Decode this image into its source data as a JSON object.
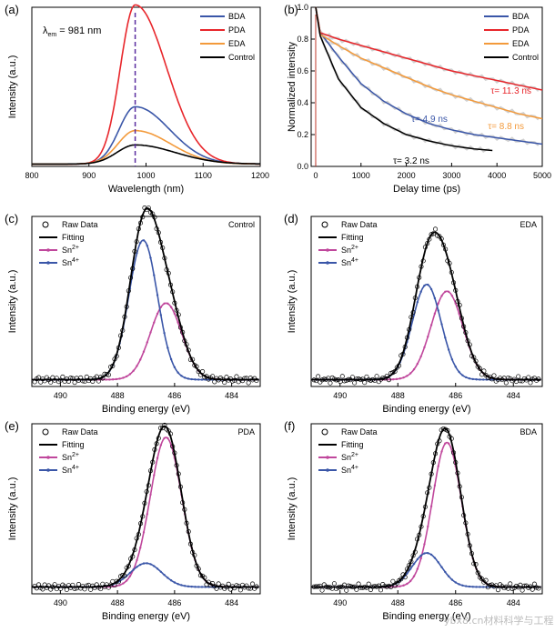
{
  "colors": {
    "BDA": "#3a56a8",
    "PDA": "#e8262b",
    "EDA": "#f39a3b",
    "Control": "#000000",
    "sn2": "#c0479c",
    "sn4": "#3a56a8",
    "fit": "#000000",
    "vline": "#5a2ca0",
    "raw": "#000000",
    "gray": "#a9a9a9"
  },
  "watermark": "ybx8.cn材料科学与工程",
  "chart_data": [
    {
      "panel_label": "(a)",
      "type": "line",
      "title": "",
      "xlabel": "Wavelength (nm)",
      "ylabel": "Intensity (a.u.)",
      "xlim": [
        800,
        1200
      ],
      "ylim": [
        0,
        1.0
      ],
      "xticks": [
        800,
        900,
        1000,
        1100,
        1200
      ],
      "annotation": "λem = 981 nm",
      "vline_x": 981,
      "legend": [
        "BDA",
        "PDA",
        "EDA",
        "Control"
      ],
      "legend_position": "top-right",
      "series": [
        {
          "name": "BDA",
          "peak": 0.36,
          "baseline": 0.015,
          "sigma_left": 28,
          "sigma_right": 60
        },
        {
          "name": "PDA",
          "peak": 1.0,
          "baseline": 0.015,
          "sigma_left": 26,
          "sigma_right": 55
        },
        {
          "name": "EDA",
          "peak": 0.21,
          "baseline": 0.015,
          "sigma_left": 30,
          "sigma_right": 62
        },
        {
          "name": "Control",
          "peak": 0.12,
          "baseline": 0.015,
          "sigma_left": 32,
          "sigma_right": 70
        }
      ]
    },
    {
      "panel_label": "(b)",
      "type": "line",
      "xlabel": "Delay time (ps)",
      "ylabel": "Normalized intensity",
      "xlim": [
        -100,
        5000
      ],
      "ylim": [
        0,
        1.0
      ],
      "xticks": [
        0,
        1000,
        2000,
        3000,
        4000,
        5000
      ],
      "yticks": [
        0.0,
        0.2,
        0.4,
        0.6,
        0.8,
        1.0
      ],
      "legend": [
        "BDA",
        "PDA",
        "EDA",
        "Control"
      ],
      "legend_position": "top-right",
      "series": [
        {
          "name": "BDA",
          "label": "τ= 4.9 ns",
          "points": [
            [
              0,
              1.0
            ],
            [
              100,
              0.84
            ],
            [
              500,
              0.69
            ],
            [
              1000,
              0.52
            ],
            [
              1500,
              0.41
            ],
            [
              2000,
              0.33
            ],
            [
              2500,
              0.27
            ],
            [
              3000,
              0.23
            ],
            [
              3500,
              0.2
            ],
            [
              4000,
              0.18
            ],
            [
              4500,
              0.16
            ],
            [
              5000,
              0.14
            ]
          ]
        },
        {
          "name": "PDA",
          "label": "τ= 11.3 ns",
          "points": [
            [
              0,
              1.0
            ],
            [
              100,
              0.84
            ],
            [
              500,
              0.8
            ],
            [
              1000,
              0.76
            ],
            [
              1500,
              0.72
            ],
            [
              2000,
              0.68
            ],
            [
              2500,
              0.64
            ],
            [
              3000,
              0.6
            ],
            [
              3500,
              0.57
            ],
            [
              4000,
              0.54
            ],
            [
              4500,
              0.51
            ],
            [
              5000,
              0.48
            ]
          ]
        },
        {
          "name": "EDA",
          "label": "τ= 8.8 ns",
          "points": [
            [
              0,
              1.0
            ],
            [
              100,
              0.83
            ],
            [
              500,
              0.76
            ],
            [
              1000,
              0.68
            ],
            [
              1500,
              0.62
            ],
            [
              2000,
              0.56
            ],
            [
              2500,
              0.5
            ],
            [
              3000,
              0.45
            ],
            [
              3500,
              0.41
            ],
            [
              4000,
              0.37
            ],
            [
              4500,
              0.33
            ],
            [
              5000,
              0.3
            ]
          ]
        },
        {
          "name": "Control",
          "label": "τ= 3.2 ns",
          "points": [
            [
              0,
              1.0
            ],
            [
              100,
              0.82
            ],
            [
              500,
              0.55
            ],
            [
              1000,
              0.37
            ],
            [
              1500,
              0.27
            ],
            [
              2000,
              0.2
            ],
            [
              2500,
              0.16
            ],
            [
              3000,
              0.13
            ],
            [
              3500,
              0.11
            ],
            [
              3900,
              0.1
            ]
          ]
        }
      ]
    },
    {
      "panel_label": "(c)",
      "type": "line",
      "sample": "Control",
      "xlabel": "Binding energy (eV)",
      "ylabel": "Intensity (a.u.)",
      "xlim": [
        491,
        483
      ],
      "ylim": [
        0,
        1.0
      ],
      "xticks": [
        490,
        488,
        486,
        484
      ],
      "legend": [
        "Raw Data",
        "Fitting",
        "Sn2+",
        "Sn4+"
      ],
      "legend_position": "top-left",
      "components": [
        {
          "name": "Sn2+",
          "center": 486.3,
          "height": 0.45,
          "width": 0.55
        },
        {
          "name": "Sn4+",
          "center": 487.1,
          "height": 0.82,
          "width": 0.5
        }
      ],
      "baseline": 0.04
    },
    {
      "panel_label": "(d)",
      "type": "line",
      "sample": "EDA",
      "xlabel": "Binding energy (eV)",
      "ylabel": "Intensity (a.u.)",
      "xlim": [
        491,
        483
      ],
      "ylim": [
        0,
        1.0
      ],
      "xticks": [
        490,
        488,
        486,
        484
      ],
      "legend": [
        "Raw Data",
        "Fitting",
        "Sn2+",
        "Sn4+"
      ],
      "legend_position": "top-left",
      "components": [
        {
          "name": "Sn2+",
          "center": 486.3,
          "height": 0.52,
          "width": 0.55
        },
        {
          "name": "Sn4+",
          "center": 487.0,
          "height": 0.56,
          "width": 0.5
        }
      ],
      "baseline": 0.04
    },
    {
      "panel_label": "(e)",
      "type": "line",
      "sample": "PDA",
      "xlabel": "Binding energy (eV)",
      "ylabel": "Intensity (a.u.)",
      "xlim": [
        491,
        483
      ],
      "ylim": [
        0,
        1.0
      ],
      "xticks": [
        490,
        488,
        486,
        484
      ],
      "legend": [
        "Raw Data",
        "Fitting",
        "Sn2+",
        "Sn4+"
      ],
      "legend_position": "top-left",
      "components": [
        {
          "name": "Sn2+",
          "center": 486.3,
          "height": 0.88,
          "width": 0.55
        },
        {
          "name": "Sn4+",
          "center": 487.0,
          "height": 0.14,
          "width": 0.55
        }
      ],
      "baseline": 0.04
    },
    {
      "panel_label": "(f)",
      "type": "line",
      "sample": "BDA",
      "xlabel": "Binding energy (eV)",
      "ylabel": "Intensity (a.u.)",
      "xlim": [
        491,
        483
      ],
      "ylim": [
        0,
        1.0
      ],
      "xticks": [
        490,
        488,
        486,
        484
      ],
      "legend": [
        "Raw Data",
        "Fitting",
        "Sn2+",
        "Sn4+"
      ],
      "legend_position": "top-left",
      "components": [
        {
          "name": "Sn2+",
          "center": 486.3,
          "height": 0.85,
          "width": 0.5
        },
        {
          "name": "Sn4+",
          "center": 487.0,
          "height": 0.2,
          "width": 0.5
        }
      ],
      "baseline": 0.04
    }
  ]
}
